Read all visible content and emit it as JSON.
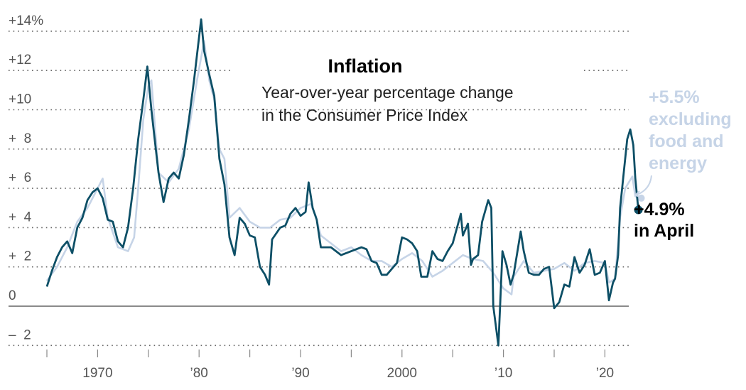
{
  "chart_data": {
    "type": "line",
    "title": "Inflation",
    "subtitle_lines": [
      "Year-over-year percentage change",
      "in the Consumer Price Index"
    ],
    "ylim": [
      -2.2,
      14.5
    ],
    "xlim": [
      1964.5,
      2024
    ],
    "yticks": [
      {
        "value": 14,
        "label": "+14%"
      },
      {
        "value": 12,
        "label": "+12"
      },
      {
        "value": 10,
        "label": "+10"
      },
      {
        "value": 8,
        "label": "+  8"
      },
      {
        "value": 6,
        "label": "+  6"
      },
      {
        "value": 4,
        "label": "+  4"
      },
      {
        "value": 2,
        "label": "+  2"
      },
      {
        "value": 0,
        "label": "0"
      },
      {
        "value": -2,
        "label": "–  2"
      }
    ],
    "xticks": [
      {
        "value": 1965,
        "label": ""
      },
      {
        "value": 1970,
        "label": "1970"
      },
      {
        "value": 1975,
        "label": ""
      },
      {
        "value": 1980,
        "label": "’80"
      },
      {
        "value": 1985,
        "label": ""
      },
      {
        "value": 1990,
        "label": "’90"
      },
      {
        "value": 1995,
        "label": ""
      },
      {
        "value": 2000,
        "label": "2000"
      },
      {
        "value": 2005,
        "label": ""
      },
      {
        "value": 2010,
        "label": "’10"
      },
      {
        "value": 2015,
        "label": ""
      },
      {
        "value": 2020,
        "label": "’20"
      }
    ],
    "grid": true,
    "colors": {
      "headline": "#0d4f66",
      "core": "#c6d4e7",
      "axis": "#444"
    },
    "series": [
      {
        "id": "core",
        "x": [
          1965,
          1966,
          1967,
          1968,
          1969,
          1970,
          1970.5,
          1971,
          1972,
          1973,
          1973.6,
          1974,
          1974.5,
          1975,
          1975.3,
          1976,
          1977,
          1978,
          1979,
          1979.8,
          1980.5,
          1981,
          1981.5,
          1982,
          1982.5,
          1983,
          1984,
          1985,
          1986,
          1987,
          1988,
          1989,
          1990,
          1991,
          1991.5,
          1992,
          1993,
          1994,
          1995,
          1996,
          1997,
          1998,
          1999,
          2000,
          2001,
          2002,
          2003,
          2004,
          2005,
          2006,
          2007,
          2008,
          2009,
          2010,
          2010.8,
          2011,
          2012,
          2013,
          2014,
          2015,
          2016,
          2017,
          2018,
          2019,
          2020,
          2020.4,
          2021,
          2021.5,
          2022,
          2022.7,
          2023,
          2023.3
        ],
        "values": [
          1.3,
          2.0,
          3.0,
          4.3,
          5.0,
          6.0,
          6.5,
          4.5,
          3.0,
          2.8,
          3.5,
          6.0,
          9.5,
          11.2,
          11.5,
          6.8,
          6.3,
          7.0,
          9.0,
          11.5,
          13.5,
          11.5,
          10.5,
          8.0,
          7.5,
          4.5,
          5.0,
          4.3,
          4.0,
          4.0,
          4.4,
          4.5,
          5.0,
          5.2,
          4.6,
          3.6,
          3.2,
          2.8,
          3.0,
          2.6,
          2.3,
          2.3,
          2.0,
          2.4,
          2.7,
          2.3,
          1.5,
          1.8,
          2.2,
          2.6,
          2.4,
          2.3,
          1.7,
          0.9,
          0.6,
          1.5,
          2.3,
          1.7,
          1.8,
          1.9,
          2.2,
          1.8,
          2.2,
          2.3,
          2.2,
          1.2,
          1.4,
          4.5,
          6.0,
          6.6,
          5.6,
          5.5
        ]
      },
      {
        "id": "headline",
        "x": [
          1965,
          1965.5,
          1966,
          1966.5,
          1967,
          1967.5,
          1968,
          1968.5,
          1969,
          1969.5,
          1970,
          1970.5,
          1971,
          1971.5,
          1972,
          1972.5,
          1973,
          1973.5,
          1974,
          1974.5,
          1974.9,
          1975.3,
          1975.6,
          1976,
          1976.5,
          1977,
          1977.5,
          1978,
          1978.5,
          1979,
          1979.5,
          1980.2,
          1980.5,
          1981,
          1981.5,
          1982,
          1982.5,
          1983,
          1983.5,
          1984,
          1984.5,
          1985,
          1985.5,
          1986,
          1986.5,
          1986.9,
          1987.2,
          1988,
          1988.5,
          1989,
          1989.5,
          1990,
          1990.5,
          1990.8,
          1991.2,
          1991.6,
          1992,
          1993,
          1994,
          1995,
          1996,
          1996.5,
          1997,
          1997.5,
          1998,
          1998.5,
          1999,
          1999.5,
          2000,
          2000.5,
          2001,
          2001.5,
          2001.9,
          2002.5,
          2003,
          2003.5,
          2004,
          2004.5,
          2005,
          2005.8,
          2006,
          2006.5,
          2006.8,
          2007,
          2007.5,
          2007.9,
          2008.5,
          2008.8,
          2009,
          2009.5,
          2009.9,
          2010.3,
          2010.7,
          2011,
          2011.7,
          2012,
          2012.5,
          2013,
          2013.5,
          2014,
          2014.5,
          2015,
          2015.5,
          2016,
          2016.5,
          2017,
          2017.5,
          2018,
          2018.5,
          2019,
          2019.5,
          2020,
          2020.4,
          2020.8,
          2021,
          2021.3,
          2021.5,
          2021.9,
          2022.2,
          2022.5,
          2022.8,
          2023,
          2023.3
        ],
        "values": [
          1.0,
          1.8,
          2.5,
          3.0,
          3.3,
          2.7,
          4.0,
          4.5,
          5.4,
          5.8,
          6.0,
          5.5,
          4.4,
          4.3,
          3.3,
          3.0,
          4.0,
          6.0,
          8.5,
          10.5,
          12.2,
          10.0,
          8.6,
          6.8,
          5.3,
          6.5,
          6.8,
          6.5,
          7.7,
          9.5,
          11.5,
          14.6,
          13.0,
          11.8,
          10.7,
          7.5,
          6.2,
          3.5,
          2.6,
          4.5,
          4.2,
          3.6,
          3.5,
          2.0,
          1.6,
          1.1,
          3.4,
          4.0,
          4.1,
          4.7,
          5.0,
          4.6,
          4.8,
          6.3,
          5.0,
          4.4,
          3.0,
          3.0,
          2.6,
          2.8,
          3.0,
          2.9,
          2.3,
          2.2,
          1.6,
          1.6,
          1.9,
          2.2,
          3.5,
          3.4,
          3.2,
          2.8,
          1.5,
          1.5,
          2.8,
          2.4,
          2.3,
          2.8,
          3.2,
          4.7,
          3.6,
          4.2,
          2.1,
          2.4,
          2.6,
          4.3,
          5.4,
          5.0,
          0.0,
          -2.0,
          2.8,
          2.1,
          1.1,
          1.6,
          3.8,
          2.8,
          1.7,
          1.6,
          1.6,
          1.9,
          2.0,
          -0.1,
          0.2,
          1.1,
          1.0,
          2.5,
          1.7,
          2.1,
          2.9,
          1.6,
          1.7,
          2.3,
          0.3,
          1.2,
          1.4,
          2.6,
          5.0,
          7.0,
          8.5,
          9.0,
          8.2,
          6.5,
          4.9
        ]
      }
    ],
    "annotations": {
      "core_value": "+5.5%",
      "core_lines": [
        "excluding",
        "food and",
        "energy"
      ],
      "headline_value": "+4.9%",
      "headline_label": "in April"
    }
  }
}
